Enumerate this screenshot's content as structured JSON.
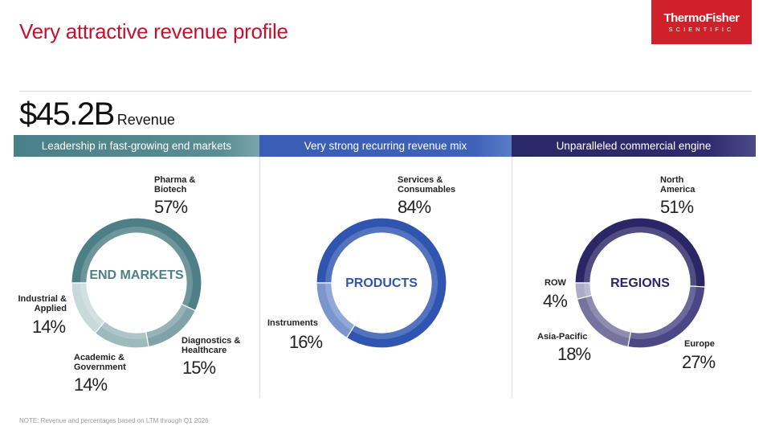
{
  "title": "Very attractive revenue profile",
  "logo": {
    "line1": "ThermoFisher",
    "line2": "SCIENTIFIC"
  },
  "revenue": {
    "value": "$45.2B",
    "label": "Revenue"
  },
  "headers": [
    "Leadership in fast-growing end markets",
    "Very strong recurring revenue mix",
    "Unparalleled commercial engine"
  ],
  "header_colors": [
    "#4a8088",
    "#3a5db5",
    "#2b2868"
  ],
  "note": "NOTE: Revenue and percentages based on LTM through Q1 2026",
  "chart_data": [
    {
      "type": "pie",
      "donut": true,
      "center_label": "END MARKETS",
      "categories": [
        "Pharma & Biotech",
        "Diagnostics & Healthcare",
        "Academic & Government",
        "Industrial & Applied"
      ],
      "values": [
        57,
        15,
        14,
        14
      ],
      "labels": [
        "57%",
        "15%",
        "14%",
        "14%"
      ],
      "colors": [
        "#4e7f86",
        "#7fa3a8",
        "#9dbabd",
        "#c8d9db"
      ],
      "center_color": "#4e7f86"
    },
    {
      "type": "pie",
      "donut": true,
      "center_label": "PRODUCTS",
      "categories": [
        "Services & Consumables",
        "Instruments"
      ],
      "values": [
        84,
        16
      ],
      "labels": [
        "84%",
        "16%"
      ],
      "colors": [
        "#2f55b0",
        "#7b95cf"
      ],
      "center_color": "#2f55b0"
    },
    {
      "type": "pie",
      "donut": true,
      "center_label": "REGIONS",
      "categories": [
        "North America",
        "Europe",
        "Asia-Pacific",
        "ROW"
      ],
      "values": [
        51,
        27,
        18,
        4
      ],
      "labels": [
        "51%",
        "27%",
        "18%",
        "4%"
      ],
      "colors": [
        "#2b2766",
        "#4a4784",
        "#77739f",
        "#aeabc9"
      ],
      "center_color": "#2b2766"
    }
  ]
}
